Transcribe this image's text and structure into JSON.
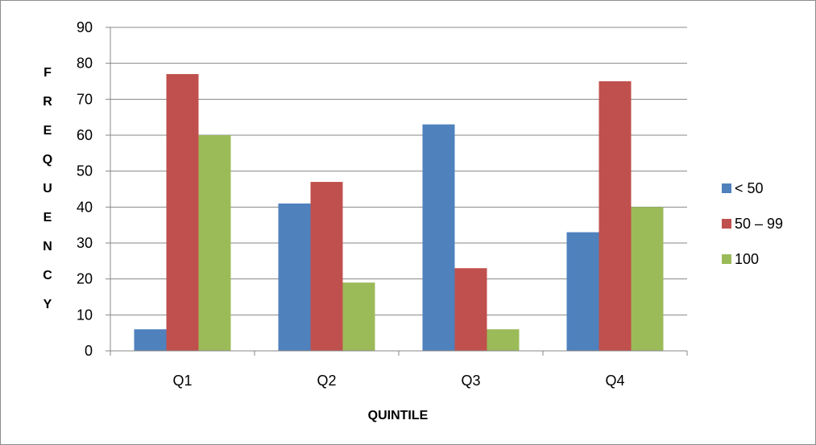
{
  "chart_data": {
    "type": "bar",
    "categories": [
      "Q1",
      "Q2",
      "Q3",
      "Q4"
    ],
    "series": [
      {
        "name": "< 50",
        "values": [
          6,
          41,
          63,
          33
        ],
        "color": "#4f81bd"
      },
      {
        "name": "50 – 99",
        "values": [
          77,
          47,
          23,
          75
        ],
        "color": "#c0504d"
      },
      {
        "name": "100",
        "values": [
          60,
          19,
          6,
          40
        ],
        "color": "#9bbb59"
      }
    ],
    "xlabel": "QUINTILE",
    "ylabel": "FREQUENCY",
    "ylim": [
      0,
      90
    ],
    "yticks": [
      0,
      10,
      20,
      30,
      40,
      50,
      60,
      70,
      80,
      90
    ],
    "grid": true,
    "legend_position": "right",
    "gridline_color": "#878787",
    "axis_color": "#878787"
  }
}
